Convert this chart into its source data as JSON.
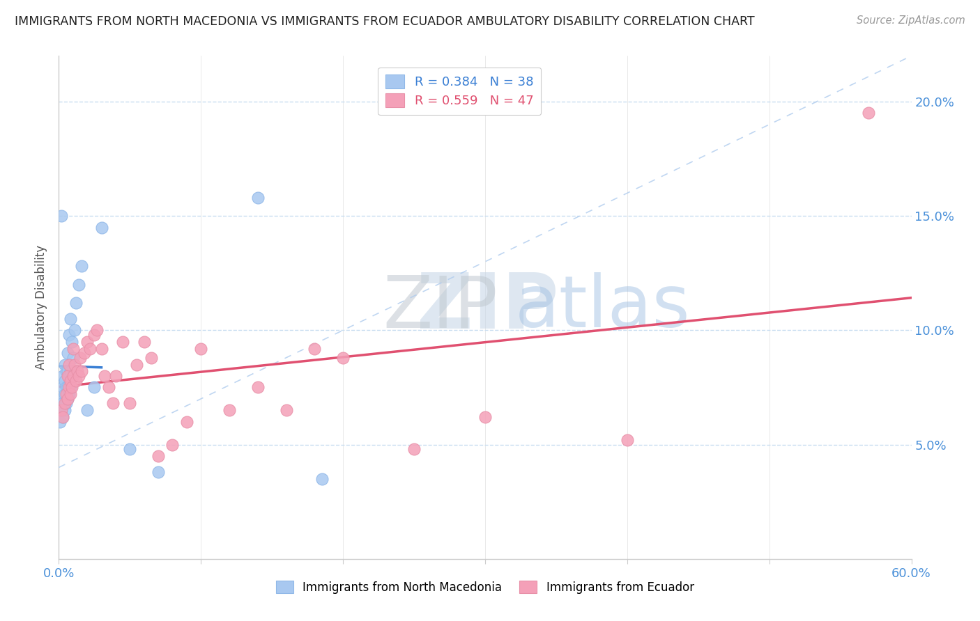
{
  "title": "IMMIGRANTS FROM NORTH MACEDONIA VS IMMIGRANTS FROM ECUADOR AMBULATORY DISABILITY CORRELATION CHART",
  "source": "Source: ZipAtlas.com",
  "ylabel": "Ambulatory Disability",
  "xlim": [
    0,
    0.6
  ],
  "ylim": [
    0,
    0.22
  ],
  "ytick_vals": [
    0.05,
    0.1,
    0.15,
    0.2
  ],
  "xtick_vals": [
    0,
    0.1,
    0.2,
    0.3,
    0.4,
    0.5,
    0.6
  ],
  "blue_R": 0.384,
  "blue_N": 38,
  "pink_R": 0.559,
  "pink_N": 47,
  "blue_color": "#a8c8f0",
  "pink_color": "#f4a0b8",
  "blue_trend_color": "#3a7fd4",
  "pink_trend_color": "#e05070",
  "blue_x": [
    0.001,
    0.002,
    0.002,
    0.002,
    0.003,
    0.003,
    0.003,
    0.003,
    0.004,
    0.004,
    0.004,
    0.004,
    0.005,
    0.005,
    0.005,
    0.006,
    0.006,
    0.006,
    0.006,
    0.007,
    0.007,
    0.007,
    0.008,
    0.008,
    0.008,
    0.009,
    0.01,
    0.011,
    0.012,
    0.014,
    0.016,
    0.02,
    0.025,
    0.03,
    0.05,
    0.07,
    0.14,
    0.185
  ],
  "blue_y": [
    0.06,
    0.065,
    0.07,
    0.15,
    0.062,
    0.068,
    0.075,
    0.08,
    0.065,
    0.072,
    0.078,
    0.085,
    0.068,
    0.075,
    0.082,
    0.07,
    0.075,
    0.082,
    0.09,
    0.072,
    0.08,
    0.098,
    0.075,
    0.082,
    0.105,
    0.095,
    0.088,
    0.1,
    0.112,
    0.12,
    0.128,
    0.065,
    0.075,
    0.145,
    0.048,
    0.038,
    0.158,
    0.035
  ],
  "pink_x": [
    0.002,
    0.003,
    0.004,
    0.005,
    0.006,
    0.006,
    0.007,
    0.007,
    0.008,
    0.008,
    0.009,
    0.01,
    0.01,
    0.011,
    0.012,
    0.013,
    0.014,
    0.015,
    0.016,
    0.018,
    0.02,
    0.022,
    0.025,
    0.027,
    0.03,
    0.032,
    0.035,
    0.038,
    0.04,
    0.045,
    0.05,
    0.055,
    0.06,
    0.065,
    0.07,
    0.08,
    0.09,
    0.1,
    0.12,
    0.14,
    0.16,
    0.18,
    0.2,
    0.25,
    0.3,
    0.4,
    0.57
  ],
  "pink_y": [
    0.065,
    0.062,
    0.068,
    0.072,
    0.07,
    0.08,
    0.075,
    0.085,
    0.072,
    0.078,
    0.075,
    0.08,
    0.092,
    0.085,
    0.078,
    0.082,
    0.08,
    0.088,
    0.082,
    0.09,
    0.095,
    0.092,
    0.098,
    0.1,
    0.092,
    0.08,
    0.075,
    0.068,
    0.08,
    0.095,
    0.068,
    0.085,
    0.095,
    0.088,
    0.045,
    0.05,
    0.06,
    0.092,
    0.065,
    0.075,
    0.065,
    0.092,
    0.088,
    0.048,
    0.062,
    0.052,
    0.195
  ]
}
